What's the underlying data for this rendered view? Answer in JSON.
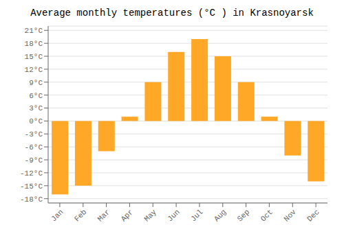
{
  "chart_data": {
    "type": "bar",
    "title": "Average monthly temperatures (°C ) in Krasnoyarsk",
    "categories": [
      "Jan",
      "Feb",
      "Mar",
      "Apr",
      "May",
      "Jun",
      "Jul",
      "Aug",
      "Sep",
      "Oct",
      "Nov",
      "Dec"
    ],
    "values": [
      -17,
      -15,
      -7,
      1,
      9,
      16,
      19,
      15,
      9,
      1,
      -8,
      -14
    ],
    "color": "#FFA726",
    "ylim": [
      -19,
      22
    ],
    "yticks": [
      {
        "value": -18,
        "label": "-18°C"
      },
      {
        "value": -15,
        "label": "-15°C"
      },
      {
        "value": -12,
        "label": "-12°C"
      },
      {
        "value": -9,
        "label": "-9°C"
      },
      {
        "value": -6,
        "label": "-6°C"
      },
      {
        "value": -3,
        "label": "-3°C"
      },
      {
        "value": 0,
        "label": "0°C"
      },
      {
        "value": 3,
        "label": "3°C"
      },
      {
        "value": 6,
        "label": "6°C"
      },
      {
        "value": 9,
        "label": "9°C"
      },
      {
        "value": 12,
        "label": "12°C"
      },
      {
        "value": 15,
        "label": "15°C"
      },
      {
        "value": 18,
        "label": "18°C"
      },
      {
        "value": 21,
        "label": "21°C"
      }
    ],
    "grid": true
  }
}
